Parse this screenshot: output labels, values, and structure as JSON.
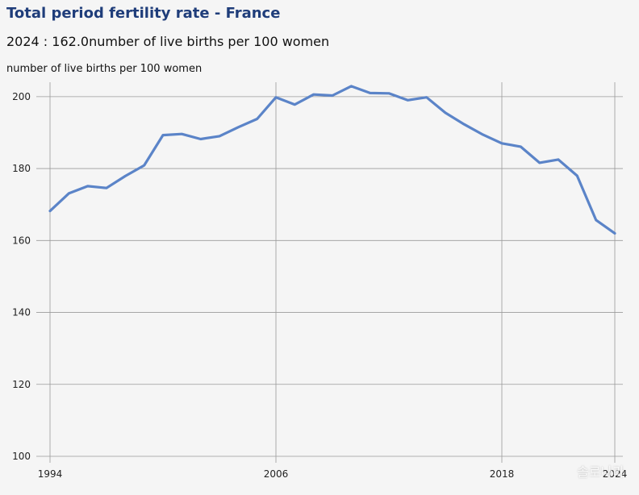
{
  "header": {
    "title": "Total period fertility rate - France",
    "subtitle": "2024 : 162.0number of live births per 100 women",
    "unit_label": "number of live births per 100 women"
  },
  "watermark": "솔로나라",
  "colors": {
    "title": "#1f3d7a",
    "line": "#5b84c8",
    "grid": "#9a9a9a",
    "background": "#f5f5f5"
  },
  "chart_data": {
    "type": "line",
    "title": "Total period fertility rate - France",
    "xlabel": "",
    "ylabel": "number of live births per 100 women",
    "x": [
      1994,
      1995,
      1996,
      1997,
      1998,
      1999,
      2000,
      2001,
      2002,
      2003,
      2004,
      2005,
      2006,
      2007,
      2008,
      2009,
      2010,
      2011,
      2012,
      2013,
      2014,
      2015,
      2016,
      2017,
      2018,
      2019,
      2020,
      2021,
      2022,
      2023,
      2024
    ],
    "series": [
      {
        "name": "France",
        "values": [
          168.2,
          173.1,
          175.1,
          174.6,
          177.9,
          180.9,
          189.3,
          189.6,
          188.2,
          189.0,
          191.5,
          193.8,
          199.8,
          197.8,
          200.6,
          200.3,
          202.9,
          201.0,
          200.9,
          199.0,
          199.8,
          195.5,
          192.3,
          189.4,
          187.0,
          186.1,
          181.6,
          182.5,
          178.0,
          165.7,
          162.0
        ]
      }
    ],
    "x_ticks": [
      1994,
      2006,
      2018,
      2024
    ],
    "y_ticks": [
      100,
      120,
      140,
      160,
      180,
      200
    ],
    "xlim": [
      1994,
      2024
    ],
    "ylim": [
      100,
      204
    ],
    "grid": true
  }
}
